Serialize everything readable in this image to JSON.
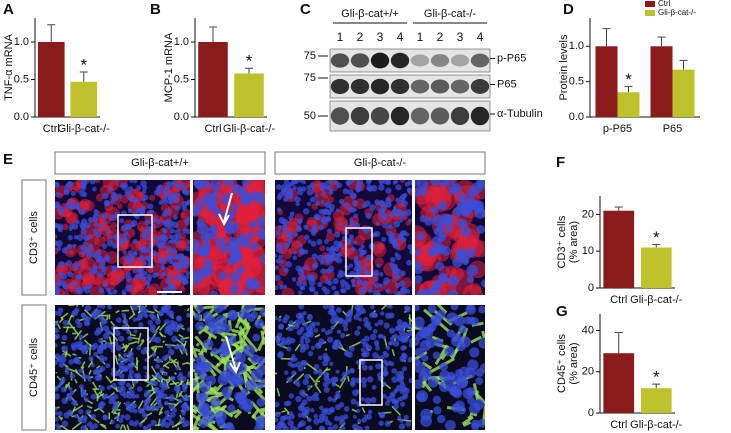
{
  "chart_data": [
    {
      "type": "bar",
      "panel": "A",
      "ylabel": [
        "TNF-α mRNA"
      ],
      "categories": [
        "Ctrl",
        "Gli-β-cat-/-"
      ],
      "values": [
        1.0,
        0.47
      ],
      "errors": [
        0.23,
        0.13
      ],
      "colors": [
        "#8b1a1a",
        "#bcc12c"
      ],
      "annotations": [
        "*"
      ],
      "ylim": [
        0,
        1.32
      ],
      "yticks": [
        {
          "value": 0,
          "label": "0.0"
        },
        0.5,
        {
          "value": 1,
          "label": "1.0"
        }
      ]
    },
    {
      "type": "bar",
      "panel": "B",
      "ylabel": [
        "MCP-1 mRNA"
      ],
      "categories": [
        "Ctrl",
        "Gli-β-cat-/-"
      ],
      "values": [
        1.0,
        0.58
      ],
      "errors": [
        0.2,
        0.07
      ],
      "colors": [
        "#8b1a1a",
        "#bcc12c"
      ],
      "annotations": [
        "*"
      ],
      "ylim": [
        0,
        1.32
      ],
      "yticks": [
        {
          "value": 0,
          "label": "0.0"
        },
        0.5,
        {
          "value": 1,
          "label": "1.0"
        }
      ]
    },
    {
      "type": "grouped_bar",
      "panel": "D",
      "ylabel": [
        "Protein levels"
      ],
      "categories": [
        "p-P65",
        "P65"
      ],
      "series": [
        {
          "name": "Ctrl",
          "color": "#8b1a1a",
          "values": [
            1.0,
            1.0
          ],
          "errors": [
            0.25,
            0.13
          ]
        },
        {
          "name": "Gli-β-cat-/-",
          "color": "#bcc12c",
          "values": [
            0.35,
            0.67
          ],
          "errors": [
            0.08,
            0.13
          ]
        }
      ],
      "annotations": [
        "*"
      ],
      "legend": "top-right",
      "ylim": [
        0,
        1.4
      ],
      "yticks": [
        {
          "value": 0,
          "label": "0.0"
        },
        0.5,
        {
          "value": 1,
          "label": "1.0"
        }
      ]
    },
    {
      "type": "bar",
      "panel": "F",
      "ylabel": [
        "CD3⁺ cells",
        "(% area)"
      ],
      "categories": [
        "Ctrl",
        "Gli-β-cat-/-"
      ],
      "values": [
        21,
        11
      ],
      "errors": [
        1,
        0.8
      ],
      "colors": [
        "#8b1a1a",
        "#bcc12c"
      ],
      "annotations": [
        "*"
      ],
      "ylim": [
        0,
        25
      ],
      "yticks": [
        0,
        10,
        20
      ]
    },
    {
      "type": "bar",
      "panel": "G",
      "ylabel": [
        "CD45⁺ cells",
        "(% area)"
      ],
      "categories": [
        "Ctrl",
        "Gli-β-cat-/-"
      ],
      "values": [
        29,
        12
      ],
      "errors": [
        10,
        2
      ],
      "colors": [
        "#8b1a1a",
        "#bcc12c"
      ],
      "annotations": [
        "*"
      ],
      "ylim": [
        0,
        48
      ],
      "yticks": [
        0,
        20,
        40
      ]
    }
  ],
  "blot": {
    "panel": "C",
    "groups": [
      "Gli-β-cat+/+",
      "Gli-β-cat-/-"
    ],
    "lanes": [
      "1",
      "2",
      "3",
      "4",
      "1",
      "2",
      "3",
      "4"
    ],
    "markers": [
      "75",
      "75",
      "50"
    ],
    "bands": [
      "p-P65",
      "P65",
      "α-Tubulin"
    ]
  },
  "images": {
    "panel": "E",
    "columns": [
      "Gli-β-cat+/+",
      "Gli-β-cat-/-"
    ],
    "rows": [
      "CD3⁺ cells",
      "CD45⁺ cells"
    ]
  }
}
